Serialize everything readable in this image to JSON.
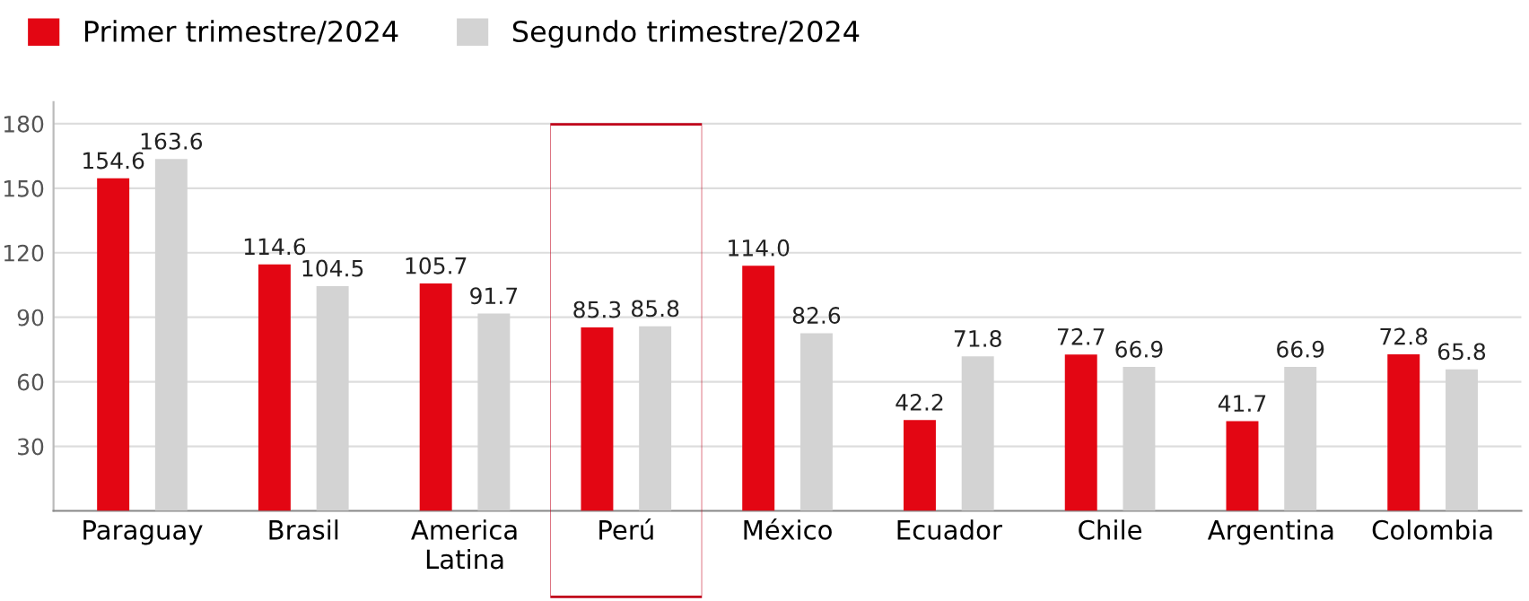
{
  "chart_data": {
    "type": "bar",
    "categories": [
      "Paraguay",
      "Brasil",
      "America\nLatina",
      "Perú",
      "México",
      "Ecuador",
      "Chile",
      "Argentina",
      "Colombia"
    ],
    "series": [
      {
        "name": "Primer trimestre/2024",
        "color": "#e30613",
        "values": [
          154.6,
          114.6,
          105.7,
          85.3,
          114.0,
          42.2,
          72.7,
          41.7,
          72.8
        ],
        "value_labels": [
          "154.6",
          "114.6",
          "105.7",
          "85.3",
          "114.0",
          "42.2",
          "72.7",
          "41.7",
          "72.8"
        ]
      },
      {
        "name": "Segundo trimestre/2024",
        "color": "#d3d3d3",
        "values": [
          163.6,
          104.5,
          91.7,
          85.8,
          82.6,
          71.8,
          66.9,
          66.9,
          65.8
        ],
        "value_labels": [
          "163.6",
          "104.5",
          "91.7",
          "85.8",
          "82.6",
          "71.8",
          "66.9",
          "66.9",
          "65.8"
        ]
      }
    ],
    "ylim": [
      0,
      190
    ],
    "yticks": [
      30,
      60,
      90,
      120,
      150,
      180
    ],
    "grid": "y",
    "legend": "top left"
  }
}
